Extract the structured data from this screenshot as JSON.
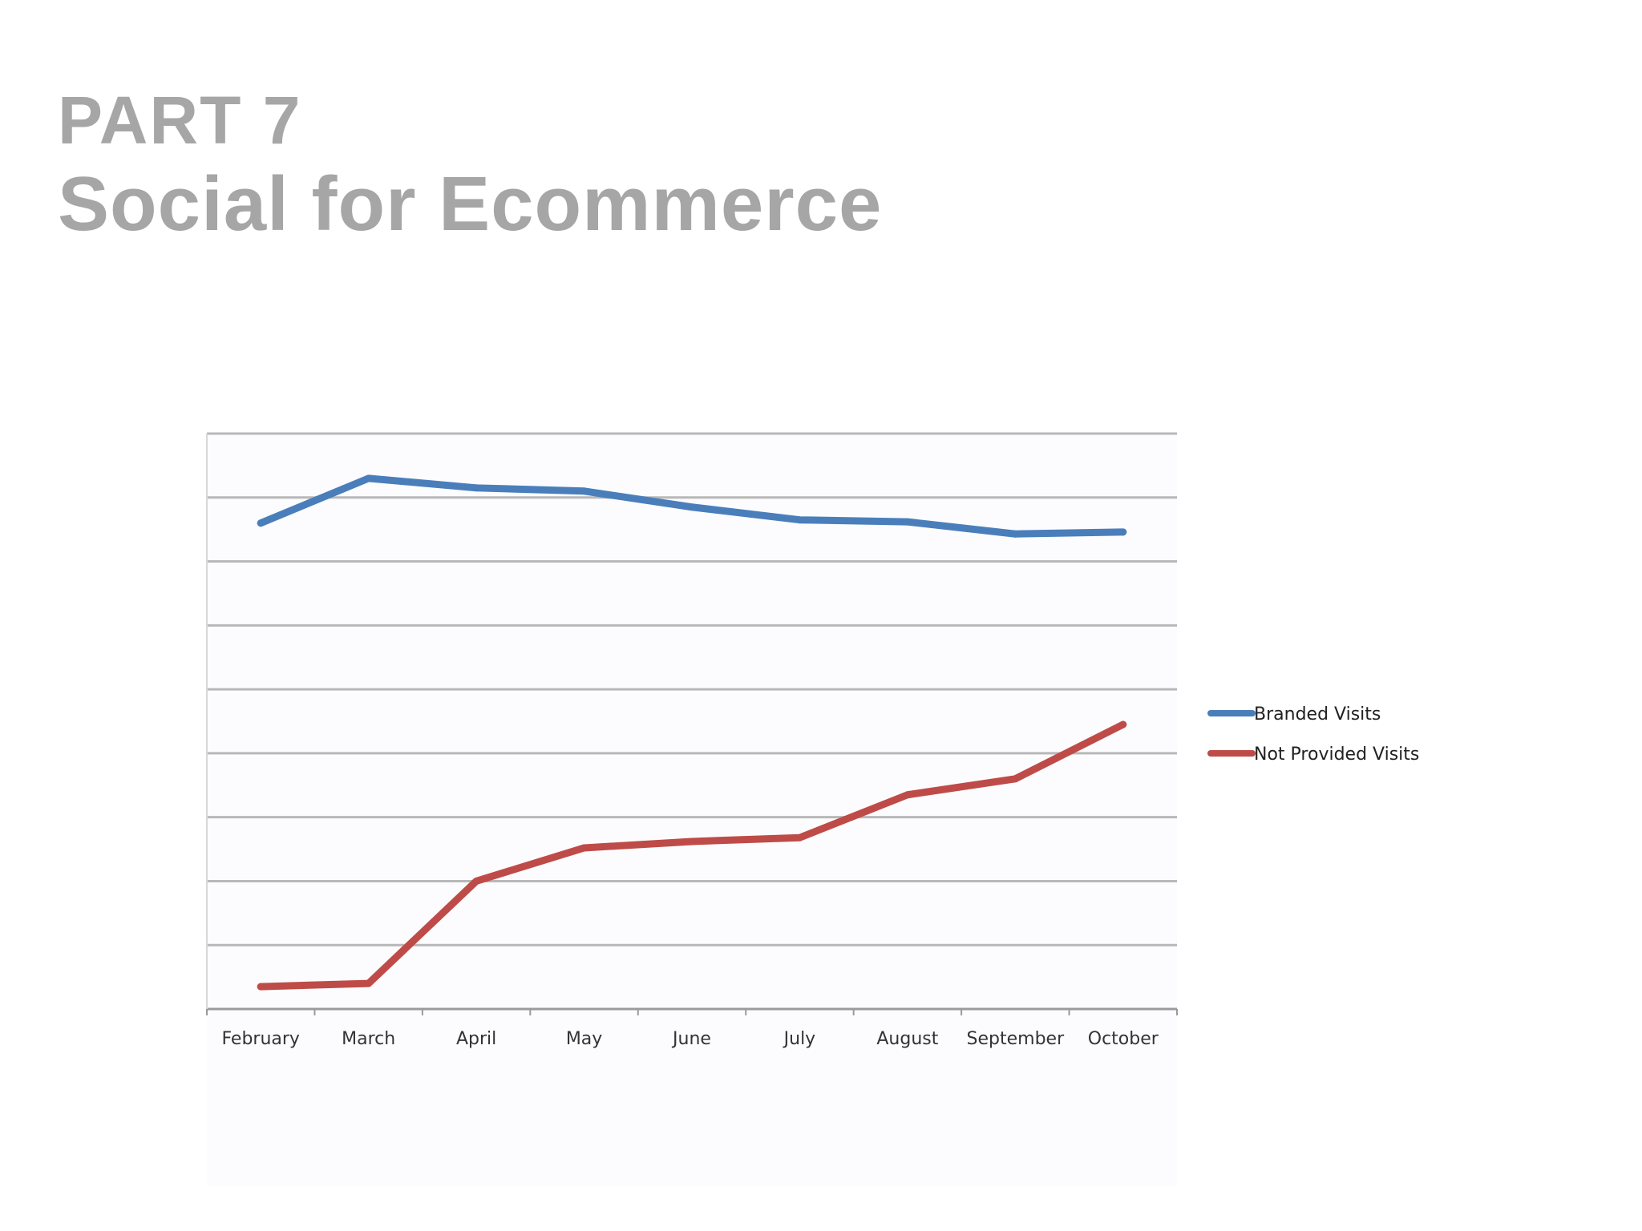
{
  "slide": {
    "part_label": "PART 7",
    "title": "Social for Ecommerce"
  },
  "chart_data": {
    "type": "line",
    "categories": [
      "February",
      "March",
      "April",
      "May",
      "June",
      "July",
      "August",
      "September",
      "October"
    ],
    "series": [
      {
        "name": "Branded Visits",
        "color": "#4a7ebb",
        "values": [
          7.6,
          8.3,
          8.15,
          8.1,
          7.85,
          7.65,
          7.62,
          7.43,
          7.46
        ]
      },
      {
        "name": "Not Provided Visits",
        "color": "#be4b48",
        "values": [
          0.35,
          0.4,
          2.0,
          2.52,
          2.62,
          2.68,
          3.35,
          3.6,
          4.45
        ]
      }
    ],
    "ylim": [
      0,
      9
    ],
    "grid": true,
    "legend": "right",
    "title": "",
    "xlabel": "",
    "ylabel": ""
  }
}
